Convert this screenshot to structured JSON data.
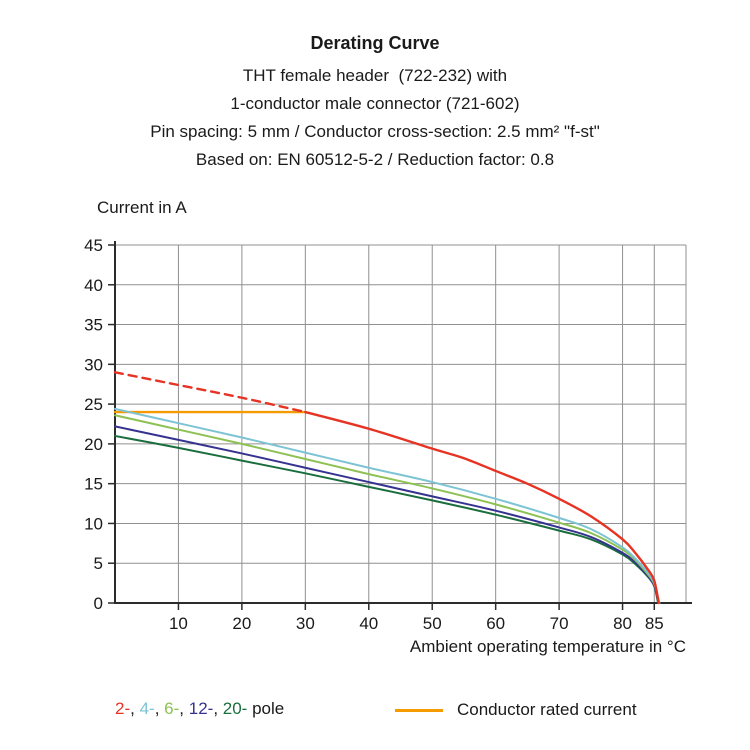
{
  "title": {
    "main": "Derating Curve",
    "lines": [
      "THT female header  (722-232) with",
      "1-conductor male connector (721-602)",
      "Pin spacing: 5 mm / Conductor cross-section: 2.5 mm² \"f-st\"",
      "Based on: EN 60512-5-2 / Reduction factor: 0.8"
    ]
  },
  "legend": {
    "poles": [
      {
        "label": "2-",
        "color": "#e63323"
      },
      {
        "label": "4-",
        "color": "#7cc4d4"
      },
      {
        "label": "6-",
        "color": "#8dc153"
      },
      {
        "label": "12-",
        "color": "#363390"
      },
      {
        "label": "20-",
        "color": "#1a6e3e"
      }
    ],
    "separator": ", ",
    "pole_suffix": " pole",
    "rated_label": "Conductor rated current",
    "rated_color": "#f59b00"
  },
  "chart_data": {
    "type": "line",
    "title": "Derating Curve",
    "xlabel": "Ambient operating temperature in °C",
    "ylabel": "Current in A",
    "xlim": [
      0,
      90
    ],
    "ylim": [
      0,
      45
    ],
    "x_ticks": [
      10,
      20,
      30,
      40,
      50,
      60,
      70,
      80,
      85
    ],
    "y_ticks": [
      0,
      5,
      10,
      15,
      20,
      25,
      30,
      35,
      40,
      45
    ],
    "grid": true,
    "legend_position": "bottom",
    "series": [
      {
        "name": "Conductor rated current",
        "color": "#f59b00",
        "width": 2.4,
        "points": [
          [
            0,
            24
          ],
          [
            30,
            24
          ]
        ]
      },
      {
        "name": "20-pole",
        "color": "#1a6e3e",
        "width": 2,
        "points": [
          [
            0,
            21
          ],
          [
            10,
            19.5
          ],
          [
            20,
            17.9
          ],
          [
            30,
            16.3
          ],
          [
            40,
            14.6
          ],
          [
            50,
            12.9
          ],
          [
            60,
            11.1
          ],
          [
            70,
            9.1
          ],
          [
            75,
            8.0
          ],
          [
            80,
            6.1
          ],
          [
            82,
            4.9
          ],
          [
            84,
            3.3
          ],
          [
            85,
            2.1
          ],
          [
            85.6,
            0
          ]
        ]
      },
      {
        "name": "12-pole",
        "color": "#363390",
        "width": 2,
        "points": [
          [
            0,
            22.2
          ],
          [
            10,
            20.5
          ],
          [
            20,
            18.8
          ],
          [
            30,
            17.0
          ],
          [
            40,
            15.2
          ],
          [
            50,
            13.4
          ],
          [
            60,
            11.6
          ],
          [
            70,
            9.5
          ],
          [
            75,
            8.3
          ],
          [
            80,
            6.3
          ],
          [
            82,
            5.1
          ],
          [
            84,
            3.4
          ],
          [
            85,
            2.2
          ],
          [
            85.7,
            0
          ]
        ]
      },
      {
        "name": "6-pole",
        "color": "#8dc153",
        "width": 2,
        "points": [
          [
            0,
            23.6
          ],
          [
            10,
            21.8
          ],
          [
            20,
            20.0
          ],
          [
            30,
            18.1
          ],
          [
            40,
            16.2
          ],
          [
            50,
            14.4
          ],
          [
            60,
            12.4
          ],
          [
            70,
            10.1
          ],
          [
            75,
            8.8
          ],
          [
            80,
            6.7
          ],
          [
            82,
            5.4
          ],
          [
            84,
            3.6
          ],
          [
            85,
            2.4
          ],
          [
            85.8,
            0
          ]
        ]
      },
      {
        "name": "4-pole",
        "color": "#7cc4d4",
        "width": 2,
        "points": [
          [
            0,
            24.4
          ],
          [
            10,
            22.6
          ],
          [
            20,
            20.8
          ],
          [
            30,
            18.9
          ],
          [
            40,
            17.0
          ],
          [
            50,
            15.2
          ],
          [
            60,
            13.1
          ],
          [
            70,
            10.7
          ],
          [
            75,
            9.3
          ],
          [
            80,
            7.0
          ],
          [
            82,
            5.6
          ],
          [
            84,
            3.8
          ],
          [
            85,
            2.5
          ],
          [
            85.8,
            0
          ]
        ]
      },
      {
        "name": "2-pole derived",
        "color": "#e63323",
        "width": 2.4,
        "dash": true,
        "points": [
          [
            0,
            29
          ],
          [
            10,
            27.4
          ],
          [
            20,
            25.8
          ],
          [
            30,
            24
          ]
        ]
      },
      {
        "name": "2-pole",
        "color": "#e63323",
        "width": 2.4,
        "points": [
          [
            30,
            24
          ],
          [
            40,
            21.9
          ],
          [
            50,
            19.4
          ],
          [
            55,
            18.2
          ],
          [
            60,
            16.6
          ],
          [
            65,
            15.0
          ],
          [
            70,
            13.1
          ],
          [
            75,
            10.9
          ],
          [
            80,
            8.0
          ],
          [
            82,
            6.3
          ],
          [
            84,
            4.2
          ],
          [
            85,
            2.8
          ],
          [
            85.7,
            0
          ]
        ]
      }
    ]
  }
}
